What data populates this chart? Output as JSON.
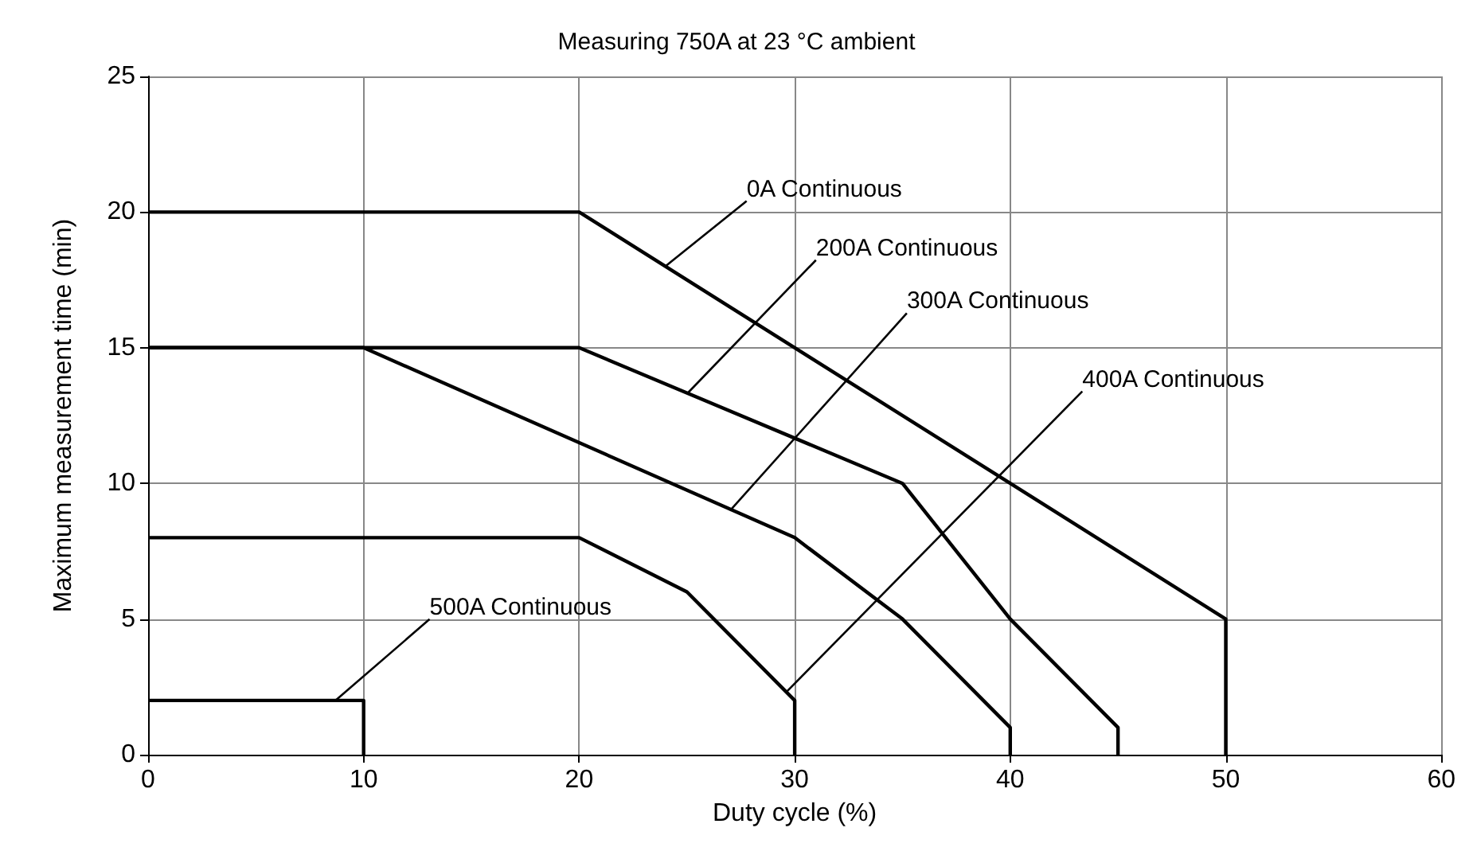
{
  "chart_data": {
    "type": "line",
    "title": "Measuring 750A at 23 °C ambient",
    "xlabel": "Duty cycle (%)",
    "ylabel": "Maximum measurement time (min)",
    "xlim": [
      0,
      60
    ],
    "xticks": [
      0,
      10,
      20,
      30,
      40,
      50,
      60
    ],
    "ylim": [
      0,
      25
    ],
    "yticks": [
      0,
      5,
      10,
      15,
      20,
      25
    ],
    "grid": true,
    "marker": "none",
    "line_style": "solid",
    "series": [
      {
        "color": "#000000",
        "x": [
          0,
          20,
          50,
          50
        ],
        "values": [
          20,
          20,
          5,
          0
        ]
      },
      {
        "color": "#000000",
        "x": [
          0,
          20,
          35,
          40,
          45,
          45
        ],
        "values": [
          15,
          15,
          10,
          5,
          1,
          0
        ]
      },
      {
        "color": "#000000",
        "x": [
          0,
          10,
          30,
          35,
          40,
          40
        ],
        "values": [
          15,
          15,
          8,
          5,
          1,
          0
        ]
      },
      {
        "color": "#000000",
        "x": [
          0,
          20,
          25,
          30,
          30
        ],
        "values": [
          8,
          8,
          6,
          2,
          0
        ]
      },
      {
        "color": "#000000",
        "x": [
          0,
          10,
          10
        ],
        "values": [
          2,
          2,
          0
        ]
      }
    ],
    "annotations": [
      {
        "text": "0A Continuous",
        "x": 24,
        "y": 18
      },
      {
        "text": "200A Continuous",
        "x": 25,
        "y": 13.3
      },
      {
        "text": "300A Continuous",
        "x": 27,
        "y": 9
      },
      {
        "text": "400A Continuous",
        "x": 29.6,
        "y": 2.3
      },
      {
        "text": "500A Continuous",
        "x": 8.7,
        "y": 2
      }
    ]
  }
}
